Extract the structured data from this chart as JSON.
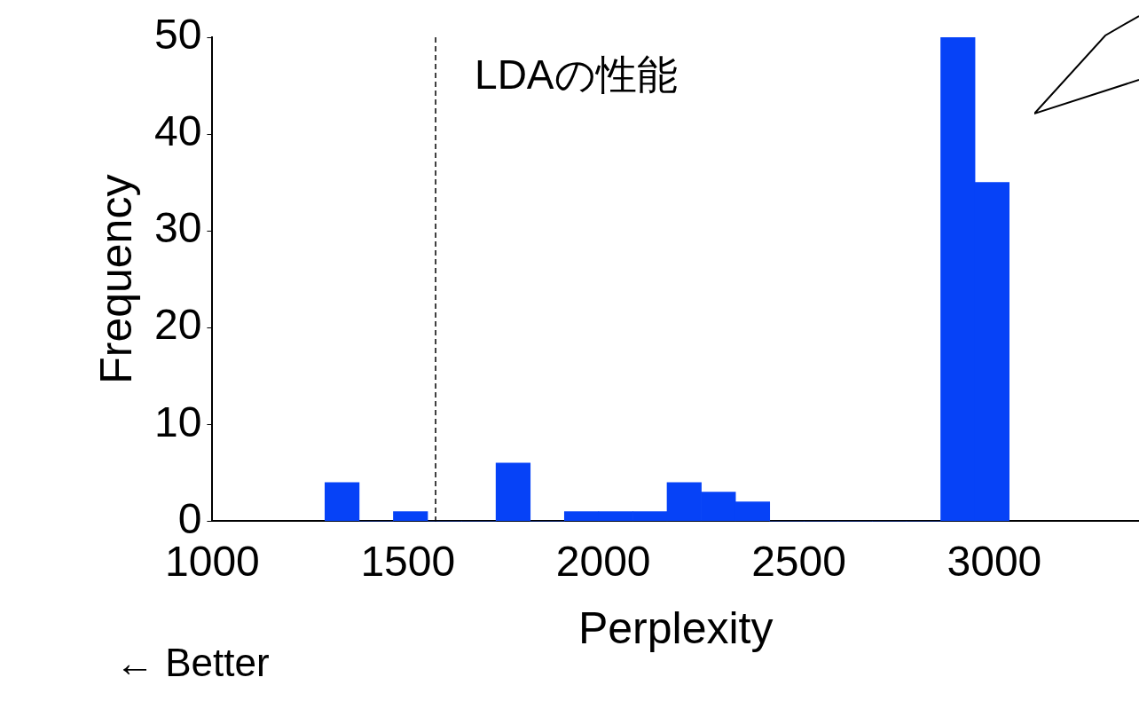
{
  "chart_data": {
    "type": "histogram",
    "xlabel": "Perplexity",
    "ylabel": "Frequency",
    "bins": [
      1288,
      1375.5,
      1463,
      1550.5,
      1638,
      1725.5,
      1813,
      1900.5,
      1988,
      2075.5,
      2163,
      2250.5,
      2338,
      2425.5,
      2513,
      2600.5,
      2688,
      2775.5,
      2863,
      2950.5,
      3038
    ],
    "values": [
      4,
      0,
      1,
      0,
      0,
      6,
      0,
      1,
      1,
      1,
      4,
      3,
      2,
      0,
      0,
      0,
      0,
      0,
      50,
      35
    ],
    "color": "#0642f7",
    "xlim": [
      1000,
      3370
    ],
    "xticks": [
      1000,
      1500,
      2000,
      2500,
      3000
    ],
    "ylim": [
      0,
      50
    ],
    "yticks": [
      0,
      10,
      20,
      30,
      40,
      50
    ],
    "grid": false,
    "legend": false,
    "ref_lines": [
      {
        "axis": "x",
        "value": 1571,
        "label": "LDAの性能",
        "color": "#000000",
        "line_style": "dashed"
      }
    ],
    "annotations": [
      "← Better"
    ]
  }
}
